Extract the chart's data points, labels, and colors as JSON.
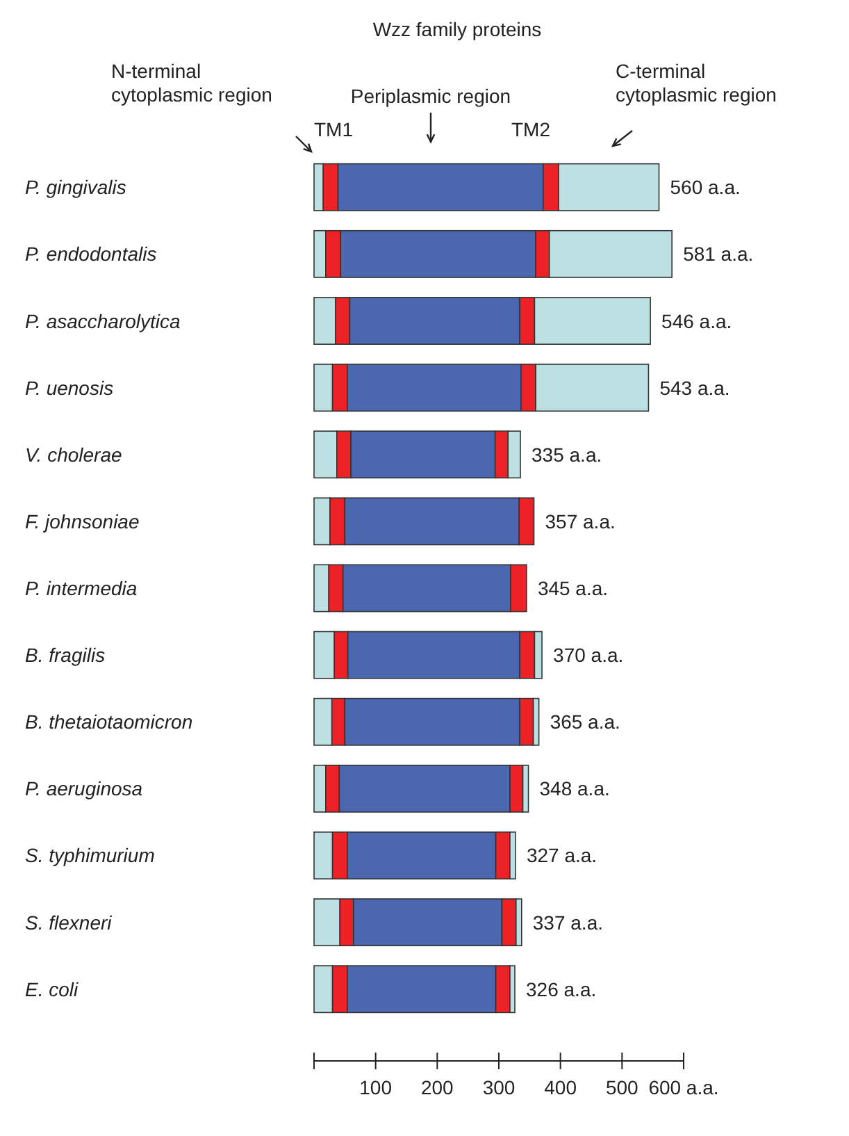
{
  "chart_data": {
    "type": "bar",
    "orientation": "horizontal",
    "stacked": true,
    "title": "Wzz family proteins",
    "categories": [
      "P. gingivalis",
      "P. endodontalis",
      "P. asaccharolytica",
      "P. uenosis",
      "V. cholerae",
      "F. johnsoniae",
      "P. intermedia",
      "B. fragilis",
      "B. thetaiotaomicron",
      "P. aeruginosa",
      "S. typhimurium",
      "S. flexneri",
      "E. coli"
    ],
    "series": [
      {
        "color": "#bde0e3",
        "values": [
          15,
          19,
          35,
          30,
          37,
          26,
          24,
          33,
          29,
          19,
          30,
          42,
          30
        ]
      },
      {
        "color": "#ec2227",
        "values": [
          24,
          24,
          23,
          24,
          23,
          24,
          23,
          22,
          21,
          22,
          24,
          22,
          24
        ]
      },
      {
        "color": "#4a67b0",
        "values": [
          333,
          317,
          276,
          282,
          234,
          283,
          272,
          279,
          284,
          277,
          241,
          241,
          241
        ]
      },
      {
        "color": "#ec2227",
        "values": [
          25,
          22,
          24,
          24,
          21,
          24,
          26,
          24,
          22,
          21,
          23,
          23,
          23
        ]
      },
      {
        "color": "#bde0e3",
        "values": [
          163,
          199,
          188,
          183,
          20,
          0,
          0,
          12,
          9,
          9,
          9,
          9,
          8
        ]
      }
    ],
    "totals": [
      "560 a.a.",
      "581 a.a.",
      "546 a.a.",
      "543 a.a.",
      "335 a.a.",
      "357 a.a.",
      "345 a.a.",
      "370 a.a.",
      "365 a.a.",
      "348 a.a.",
      "327 a.a.",
      "337 a.a.",
      "326 a.a."
    ],
    "xlim": [
      0,
      600
    ],
    "xticks": [
      {
        "value": 0,
        "label": null
      },
      100,
      200,
      300,
      400,
      500,
      {
        "value": 600,
        "label": "600 a.a."
      }
    ],
    "annotations": [
      "N-terminal cytoplasmic region",
      "Periplasmic region",
      "C-terminal cytoplasmic region",
      "TM1",
      "TM2"
    ],
    "tick_labels": "x"
  }
}
